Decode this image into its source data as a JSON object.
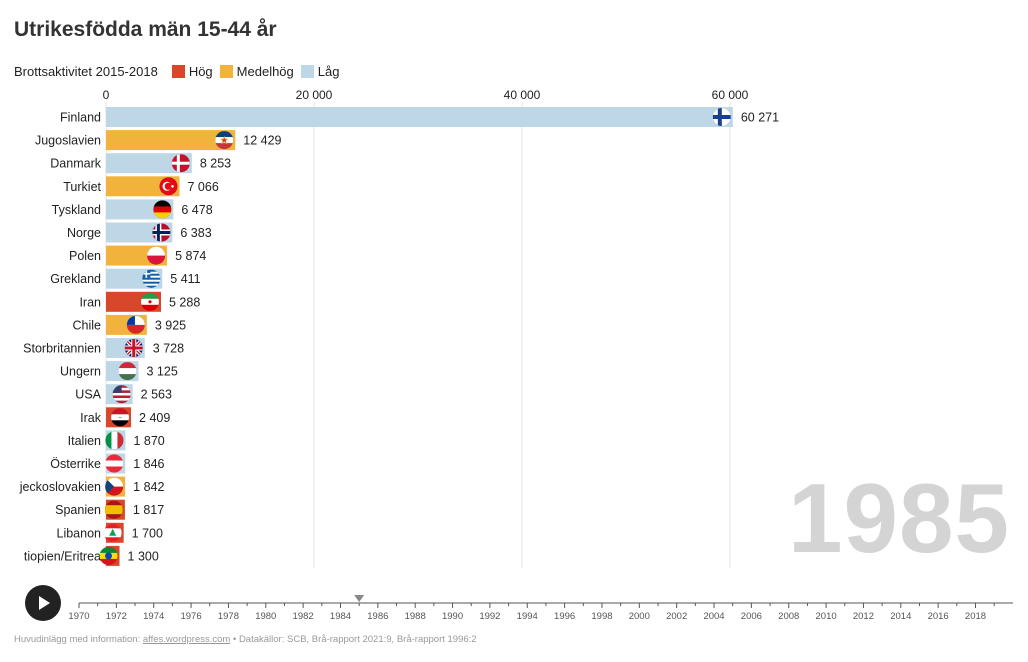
{
  "title": "Utrikesfödda män 15-44 år",
  "legend": {
    "title": "Brottsaktivitet 2015-2018",
    "items": [
      {
        "label": "Hög",
        "color": "#d9472b"
      },
      {
        "label": "Medelhög",
        "color": "#f2b33d"
      },
      {
        "label": "Låg",
        "color": "#bdd7e7"
      }
    ]
  },
  "year_label": "1985",
  "timeline": {
    "ticks": [
      "1970",
      "1972",
      "1974",
      "1976",
      "1978",
      "1980",
      "1982",
      "1984",
      "1986",
      "1988",
      "1990",
      "1992",
      "1994",
      "1996",
      "1998",
      "2000",
      "2002",
      "2004",
      "2006",
      "2008",
      "2010",
      "2012",
      "2014",
      "2016",
      "2018"
    ],
    "min": 1970,
    "max": 2019,
    "current": 1985
  },
  "footer": {
    "prefix": "Huvudinlägg med information: ",
    "link": "affes.wordpress.com",
    "suffix": " • Datakällor: SCB, Brå-rapport 2021:9, Brå-rapport 1996:2"
  },
  "chart_data": {
    "type": "bar",
    "orientation": "horizontal",
    "title": "Utrikesfödda män 15-44 år",
    "xlim": [
      0,
      62000
    ],
    "x_ticks": [
      0,
      20000,
      40000,
      60000
    ],
    "x_tick_labels": [
      "0",
      "20 000",
      "40 000",
      "60 000"
    ],
    "colors": {
      "Hög": "#d9472b",
      "Medelhög": "#f2b33d",
      "Låg": "#bdd7e7"
    },
    "bars": [
      {
        "label": "Finland",
        "value": 60271,
        "value_label": "60 271",
        "category": "Låg",
        "flag": "finland-flag-icon"
      },
      {
        "label": "Jugoslavien",
        "value": 12429,
        "value_label": "12 429",
        "category": "Medelhög",
        "flag": "yugoslavia-flag-icon"
      },
      {
        "label": "Danmark",
        "value": 8253,
        "value_label": "8 253",
        "category": "Låg",
        "flag": "denmark-flag-icon"
      },
      {
        "label": "Turkiet",
        "value": 7066,
        "value_label": "7 066",
        "category": "Medelhög",
        "flag": "turkey-flag-icon"
      },
      {
        "label": "Tyskland",
        "value": 6478,
        "value_label": "6 478",
        "category": "Låg",
        "flag": "germany-flag-icon"
      },
      {
        "label": "Norge",
        "value": 6383,
        "value_label": "6 383",
        "category": "Låg",
        "flag": "norway-flag-icon"
      },
      {
        "label": "Polen",
        "value": 5874,
        "value_label": "5 874",
        "category": "Medelhög",
        "flag": "poland-flag-icon"
      },
      {
        "label": "Grekland",
        "value": 5411,
        "value_label": "5 411",
        "category": "Låg",
        "flag": "greece-flag-icon"
      },
      {
        "label": "Iran",
        "value": 5288,
        "value_label": "5 288",
        "category": "Hög",
        "flag": "iran-flag-icon"
      },
      {
        "label": "Chile",
        "value": 3925,
        "value_label": "3 925",
        "category": "Medelhög",
        "flag": "chile-flag-icon"
      },
      {
        "label": "Storbritannien",
        "value": 3728,
        "value_label": "3 728",
        "category": "Låg",
        "flag": "uk-flag-icon"
      },
      {
        "label": "Ungern",
        "value": 3125,
        "value_label": "3 125",
        "category": "Låg",
        "flag": "hungary-flag-icon"
      },
      {
        "label": "USA",
        "value": 2563,
        "value_label": "2 563",
        "category": "Låg",
        "flag": "usa-flag-icon"
      },
      {
        "label": "Irak",
        "value": 2409,
        "value_label": "2 409",
        "category": "Hög",
        "flag": "iraq-flag-icon"
      },
      {
        "label": "Italien",
        "value": 1870,
        "value_label": "1 870",
        "category": "Låg",
        "flag": "italy-flag-icon"
      },
      {
        "label": "Österrike",
        "value": 1846,
        "value_label": "1 846",
        "category": "Låg",
        "flag": "austria-flag-icon"
      },
      {
        "label": "jeckoslovakien",
        "value": 1842,
        "value_label": "1 842",
        "category": "Medelhög",
        "flag": "czechoslovakia-flag-icon"
      },
      {
        "label": "Spanien",
        "value": 1817,
        "value_label": "1 817",
        "category": "Hög",
        "flag": "spain-flag-icon"
      },
      {
        "label": "Libanon",
        "value": 1700,
        "value_label": "1 700",
        "category": "Hög",
        "flag": "lebanon-flag-icon"
      },
      {
        "label": "tiopien/Eritrea",
        "value": 1300,
        "value_label": "1 300",
        "category": "Hög",
        "flag": "ethiopia-flag-icon"
      }
    ]
  }
}
